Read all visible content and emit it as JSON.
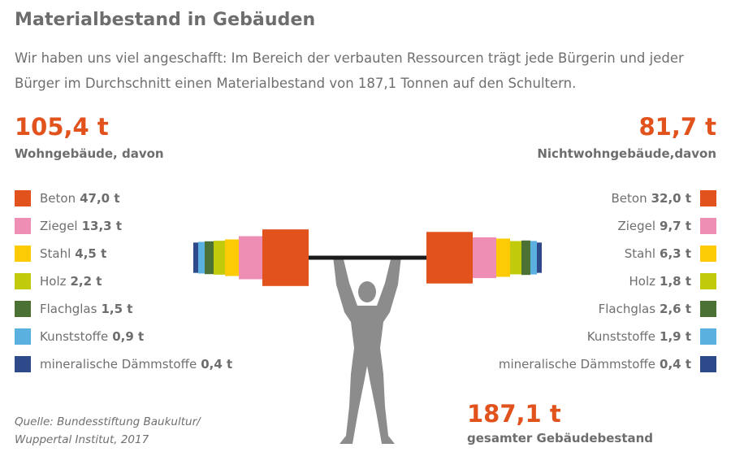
{
  "title": "Materialbestand in Gebäuden",
  "subtitle": "Wir haben uns viel angeschafft: Im Bereich der verbauten Ressourcen trägt jede Bürgerin und jeder Bürger im Durchschnitt einen Materialbestand von 187,1 Tonnen auf den Schultern.",
  "colors": {
    "Beton": "#e2521c",
    "Ziegel": "#ef8eb4",
    "Stahl": "#fccb05",
    "Holz": "#c2cb0b",
    "Flachglas": "#4c7134",
    "Kunststoffe": "#5ab0df",
    "mineralische Dämmstoffe": "#2f4a8a",
    "bar": "#1a1a1a",
    "figure": "#8c8c8c"
  },
  "left": {
    "total_label": "105,4 t",
    "group_label": "Wohngebäude, davon",
    "items": [
      {
        "name": "Beton",
        "value_label": "47,0 t"
      },
      {
        "name": "Ziegel",
        "value_label": "13,3 t"
      },
      {
        "name": "Stahl",
        "value_label": "4,5 t"
      },
      {
        "name": "Holz",
        "value_label": "2,2 t"
      },
      {
        "name": "Flachglas",
        "value_label": "1,5 t"
      },
      {
        "name": "Kunststoffe",
        "value_label": "0,9 t"
      },
      {
        "name": "mineralische Dämmstoffe",
        "value_label": "0,4 t"
      }
    ]
  },
  "right": {
    "total_label": "81,7 t",
    "group_label": "Nichtwohngebäude,davon",
    "items": [
      {
        "name": "Beton",
        "value_label": "32,0 t"
      },
      {
        "name": "Ziegel",
        "value_label": "9,7 t"
      },
      {
        "name": "Stahl",
        "value_label": "6,3 t"
      },
      {
        "name": "Holz",
        "value_label": "1,8 t"
      },
      {
        "name": "Flachglas",
        "value_label": "2,6 t"
      },
      {
        "name": "Kunststoffe",
        "value_label": "1,9 t"
      },
      {
        "name": "mineralische Dämmstoffe",
        "value_label": "0,4 t"
      }
    ]
  },
  "total": {
    "value_label": "187,1 t",
    "label": "gesamter Gebäudebestand"
  },
  "source_lines": [
    "Quelle: Bundesstiftung Baukultur/",
    "Wuppertal Institut, 2017"
  ],
  "chart_data": {
    "type": "bar",
    "title": "Materialbestand in Gebäuden",
    "unit": "t",
    "categories": [
      "Beton",
      "Ziegel",
      "Stahl",
      "Holz",
      "Flachglas",
      "Kunststoffe",
      "mineralische Dämmstoffe"
    ],
    "series": [
      {
        "name": "Wohngebäude",
        "total": 105.4,
        "values": [
          47.0,
          13.3,
          4.5,
          2.2,
          1.5,
          0.9,
          0.4
        ]
      },
      {
        "name": "Nichtwohngebäude",
        "total": 81.7,
        "values": [
          32.0,
          9.7,
          6.3,
          1.8,
          2.6,
          1.9,
          0.4
        ]
      }
    ],
    "grand_total": 187.1
  }
}
